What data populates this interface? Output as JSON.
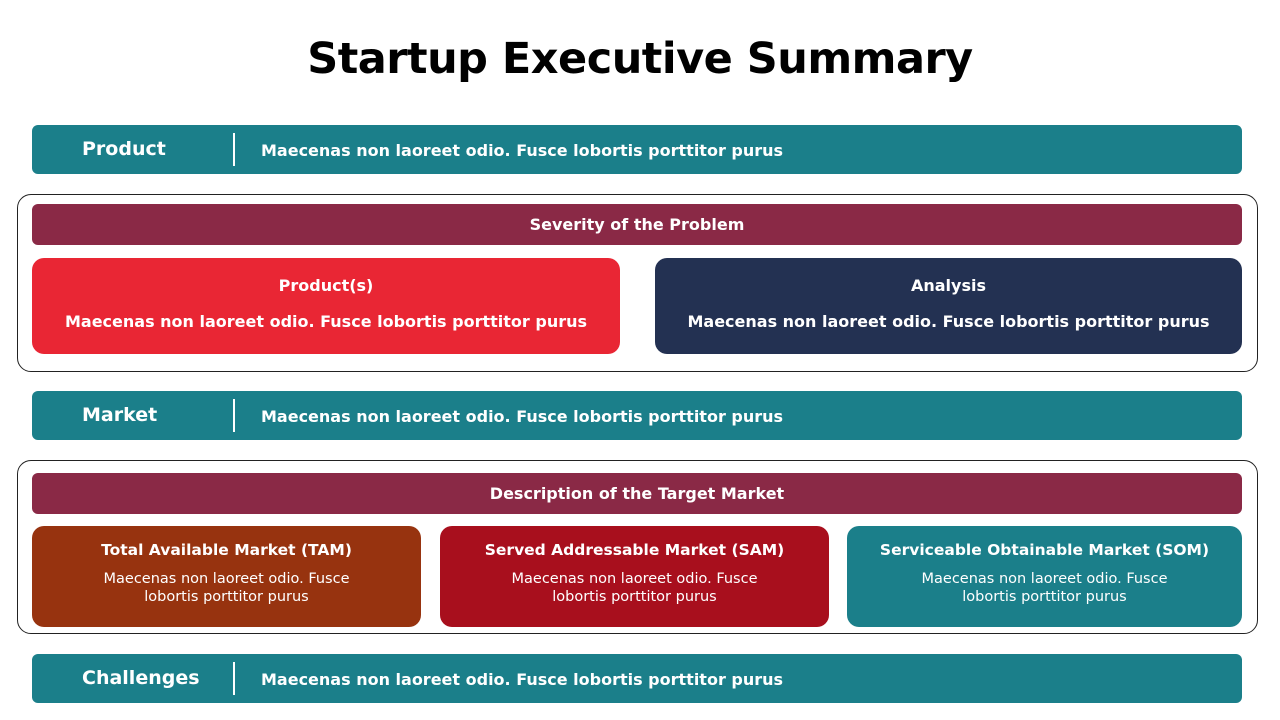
{
  "title": "Startup Executive Summary",
  "product": {
    "label": "Product",
    "text": "Maecenas non laoreet odio. Fusce lobortis porttitor purus"
  },
  "severity": {
    "header": "Severity of the Problem",
    "cards": [
      {
        "title": "Product(s)",
        "text": "Maecenas non laoreet odio. Fusce lobortis porttitor purus",
        "color": "#e92634"
      },
      {
        "title": "Analysis",
        "text": "Maecenas non laoreet odio. Fusce lobortis porttitor purus",
        "color": "#233152"
      }
    ]
  },
  "market": {
    "label": "Market",
    "text": "Maecenas non laoreet odio. Fusce lobortis porttitor purus"
  },
  "target_market": {
    "header": "Description of the Target Market",
    "cards": [
      {
        "title": "Total Available Market (TAM)",
        "text": "Maecenas non laoreet odio. Fusce lobortis porttitor purus",
        "color": "#97330f"
      },
      {
        "title": "Served Addressable Market (SAM)",
        "text": "Maecenas non laoreet odio. Fusce lobortis porttitor purus",
        "color": "#a80f1d"
      },
      {
        "title": "Serviceable Obtainable Market (SOM)",
        "text": "Maecenas non laoreet odio. Fusce lobortis porttitor purus",
        "color": "#1b7f8a"
      }
    ]
  },
  "challenges": {
    "label": "Challenges",
    "text": "Maecenas non laoreet odio. Fusce lobortis porttitor purus"
  },
  "colors": {
    "teal_bar": "#1b7f8a",
    "section_header": "#8a2946"
  }
}
